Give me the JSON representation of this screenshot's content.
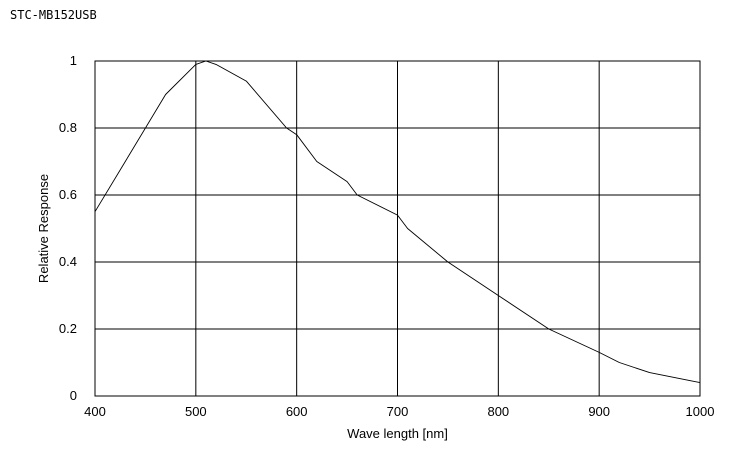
{
  "chart_data": {
    "type": "line",
    "title": "STC-MB152USB",
    "xlabel": "Wave length [nm]",
    "ylabel": "Relative Response",
    "xlim": [
      400,
      1000
    ],
    "ylim": [
      0,
      1
    ],
    "xticks": [
      400,
      500,
      600,
      700,
      800,
      900,
      1000
    ],
    "yticks": [
      0,
      0.2,
      0.4,
      0.6,
      0.8,
      1
    ],
    "ytick_labels": [
      "0",
      "0.2",
      "0.4",
      "0.6",
      "0.8",
      "1"
    ],
    "grid": true,
    "line_color": "#000000",
    "series": [
      {
        "x": [
          400,
          430,
          470,
          500,
          510,
          520,
          550,
          590,
          600,
          620,
          650,
          660,
          700,
          710,
          750,
          800,
          850,
          900,
          920,
          950,
          1000
        ],
        "y": [
          0.55,
          0.7,
          0.9,
          0.99,
          1.0,
          0.99,
          0.94,
          0.8,
          0.78,
          0.7,
          0.64,
          0.6,
          0.54,
          0.5,
          0.4,
          0.3,
          0.2,
          0.13,
          0.1,
          0.07,
          0.04
        ]
      }
    ]
  }
}
